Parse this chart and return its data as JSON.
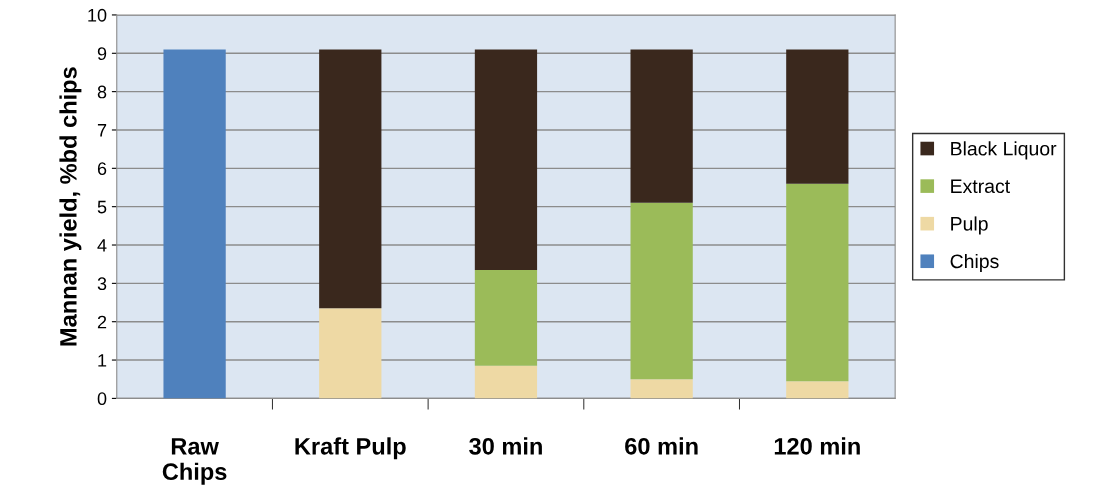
{
  "chart_data": {
    "type": "bar",
    "stacked": true,
    "ylabel": "Mannan yield, %bd chips",
    "categories": [
      "Raw\nChips",
      "Kraft Pulp",
      "30 min",
      "60 min",
      "120 min"
    ],
    "series": [
      {
        "name": "Chips",
        "color": "#4f81bd",
        "values": [
          9.1,
          null,
          null,
          null,
          null
        ]
      },
      {
        "name": "Pulp",
        "color": "#eed9a4",
        "values": [
          null,
          2.35,
          0.85,
          0.5,
          0.45
        ]
      },
      {
        "name": "Extract",
        "color": "#9bbb59",
        "values": [
          null,
          null,
          2.5,
          4.6,
          5.15
        ]
      },
      {
        "name": "Black Liquor",
        "color": "#3a281d",
        "values": [
          null,
          6.75,
          5.75,
          4.0,
          3.5
        ]
      }
    ],
    "ylim": [
      0,
      10
    ],
    "yticks": [
      0,
      1,
      2,
      3,
      4,
      5,
      6,
      7,
      8,
      9,
      10
    ],
    "grid": "y",
    "legend": "right"
  }
}
